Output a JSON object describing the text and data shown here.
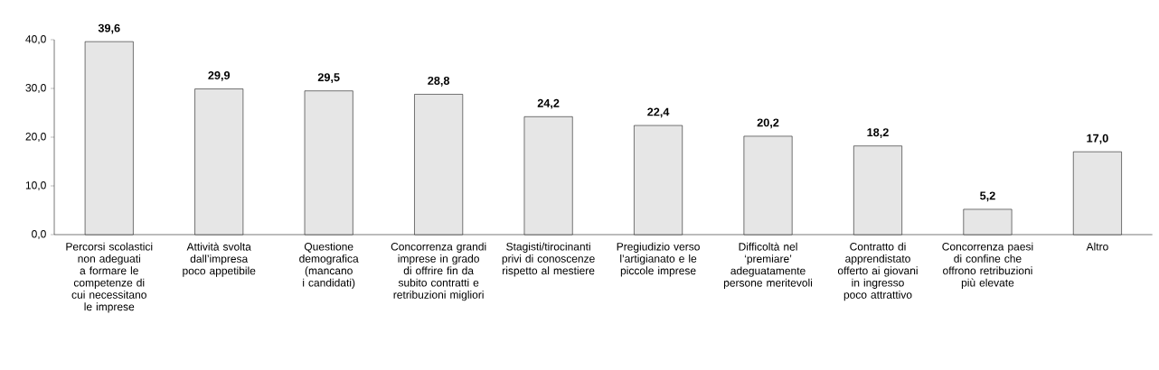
{
  "chart_data": {
    "type": "bar",
    "categories": [
      "Percorsi scolastici non adeguati a formare le competenze di cui necessitano le imprese",
      "Attività svolta dall’impresa poco appetibile",
      "Questione demografica (mancano i candidati)",
      "Concorrenza grandi imprese in grado di offrire fin da subito contratti e retribuzioni migliori",
      "Stagisti/tirocinanti privi di conoscenze rispetto al mestiere",
      "Pregiudizio verso l’artigianato e le piccole imprese",
      "Difficoltà nel ‘premiare’ adeguatamente persone meritevoli",
      "Contratto di apprendistato offerto ai giovani in ingresso poco attrattivo",
      "Concorrenza paesi di confine che offrono retribuzioni più elevate",
      "Altro"
    ],
    "values": [
      39.6,
      29.9,
      29.5,
      28.8,
      24.2,
      22.4,
      20.2,
      18.2,
      5.2,
      17.0
    ],
    "value_labels": [
      "39,6",
      "29,9",
      "29,5",
      "28,8",
      "24,2",
      "22,4",
      "20,2",
      "18,2",
      "5,2",
      "17,0"
    ],
    "color": "#e6e6e6",
    "ylim": [
      0,
      40
    ],
    "yticks": [
      {
        "value": 0,
        "label": "0,0"
      },
      {
        "value": 10,
        "label": "10,0"
      },
      {
        "value": 20,
        "label": "20,0"
      },
      {
        "value": 30,
        "label": "30,0"
      },
      {
        "value": 40,
        "label": "40,0"
      }
    ],
    "grid": false,
    "legend": false
  }
}
